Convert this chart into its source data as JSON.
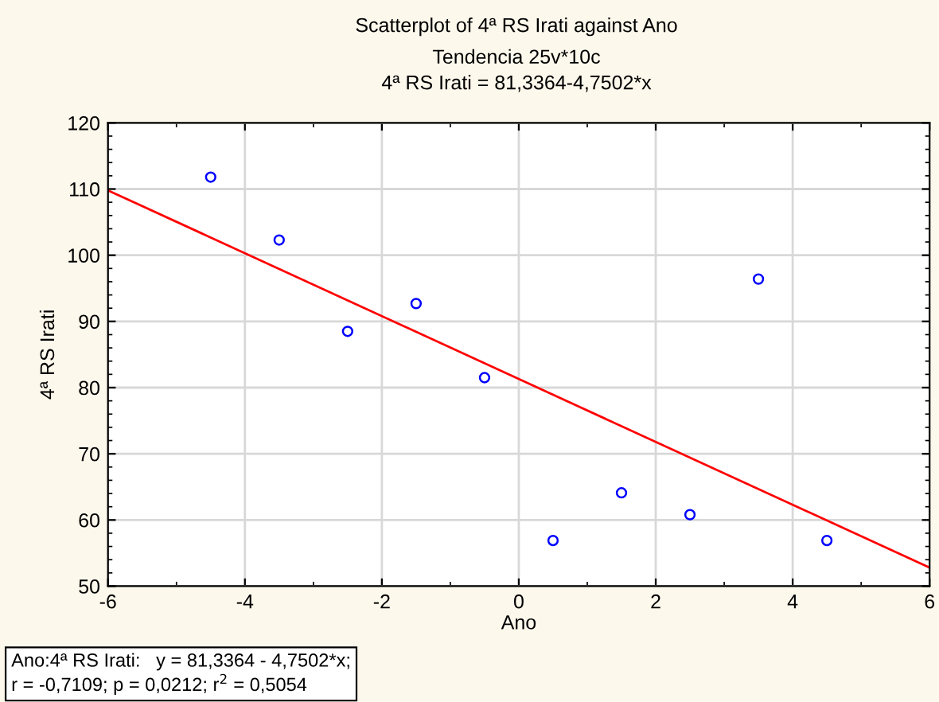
{
  "chart_data": {
    "type": "scatter",
    "title": "Scatterplot of 4ª RS Irati against Ano",
    "subtitle": "Tendencia 25v*10c\n4ª RS Irati = 81,3364-4,7502*x",
    "xlabel": "Ano",
    "ylabel": "4ª RS Irati",
    "series": [
      {
        "color": "#0000ff",
        "marker": "circle",
        "x": [
          -4.5,
          -3.5,
          -2.5,
          -1.5,
          -0.5,
          0.5,
          1.5,
          2.5,
          3.5,
          4.5
        ],
        "values": [
          111.8,
          102.3,
          88.5,
          92.7,
          81.5,
          56.9,
          64.1,
          60.8,
          96.4,
          56.9
        ]
      },
      {
        "type": "line",
        "color": "#ff0000",
        "marker": "none",
        "line_style": "solid",
        "x": [
          -6,
          6
        ],
        "values": [
          109.8,
          52.8
        ]
      }
    ],
    "xlim": [
      -6,
      6
    ],
    "ylim": [
      50,
      120
    ],
    "xticks": [
      -6,
      -4,
      -2,
      0,
      2,
      4,
      6
    ],
    "yticks": [
      50,
      60,
      70,
      80,
      90,
      100,
      110,
      120
    ],
    "grid": true,
    "annotations": [
      "Ano:4ª RS Irati:   y = 81,3364 - 4,7502*x;\nr = -0,7109; p = 0,0212; r$^{2}$ = 0,5054"
    ]
  }
}
